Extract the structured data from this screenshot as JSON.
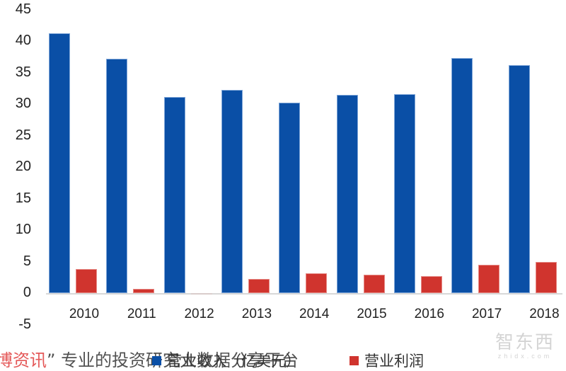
{
  "chart_data": {
    "type": "bar",
    "title": "",
    "xlabel": "",
    "ylabel": "",
    "categories": [
      "2010",
      "2011",
      "2012",
      "2013",
      "2014",
      "2015",
      "2016",
      "2017",
      "2018"
    ],
    "series": [
      {
        "name": "营业收入（亿美元）",
        "color": "#0a4fa6",
        "values": [
          41.2,
          37.2,
          31.1,
          32.3,
          30.2,
          31.5,
          31.6,
          37.3,
          36.2
        ]
      },
      {
        "name": "营业利润",
        "color": "#d0342e",
        "values": [
          3.8,
          0.7,
          -0.1,
          2.2,
          3.1,
          2.9,
          2.7,
          4.5,
          4.9
        ]
      }
    ],
    "ylim": [
      -5,
      45
    ],
    "yticks": [
      "45",
      "40",
      "35",
      "30",
      "25",
      "20",
      "15",
      "10",
      "5",
      "0",
      "-5"
    ],
    "grid": false,
    "legend_position": "bottom"
  },
  "legend": {
    "items": [
      {
        "label": "营业收入（亿美元）",
        "color": "#0a4fa6"
      },
      {
        "label": "营业利润",
        "color": "#d0342e"
      }
    ]
  },
  "footer": {
    "red_text": "博资讯",
    "text": "” 专业的投资研究大数据分享平台"
  },
  "watermark": {
    "main": "智东西",
    "sub": "zhidx.com"
  }
}
